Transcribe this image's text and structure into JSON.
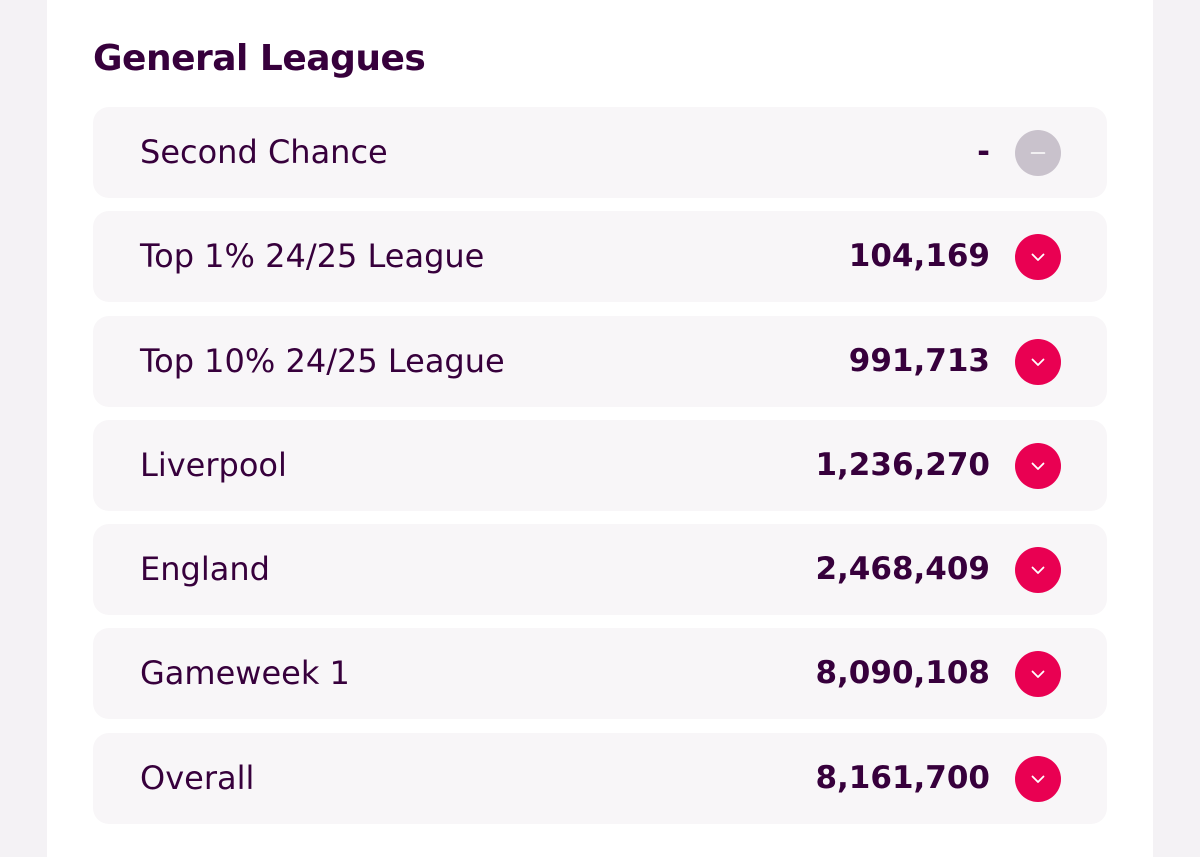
{
  "section": {
    "title": "General Leagues"
  },
  "colors": {
    "text": "#37003c",
    "row_bg": "#f8f6f8",
    "down": "#e90052",
    "neutral": "#c9c2cc"
  },
  "leagues": [
    {
      "name": "Second Chance",
      "rank": "-",
      "movement": "same",
      "icon": "minus-icon"
    },
    {
      "name": "Top 1% 24/25 League",
      "rank": "104,169",
      "movement": "down",
      "icon": "chevron-down-icon"
    },
    {
      "name": "Top 10% 24/25 League",
      "rank": "991,713",
      "movement": "down",
      "icon": "chevron-down-icon"
    },
    {
      "name": "Liverpool",
      "rank": "1,236,270",
      "movement": "down",
      "icon": "chevron-down-icon"
    },
    {
      "name": "England",
      "rank": "2,468,409",
      "movement": "down",
      "icon": "chevron-down-icon"
    },
    {
      "name": "Gameweek 1",
      "rank": "8,090,108",
      "movement": "down",
      "icon": "chevron-down-icon"
    },
    {
      "name": "Overall",
      "rank": "8,161,700",
      "movement": "down",
      "icon": "chevron-down-icon"
    }
  ]
}
